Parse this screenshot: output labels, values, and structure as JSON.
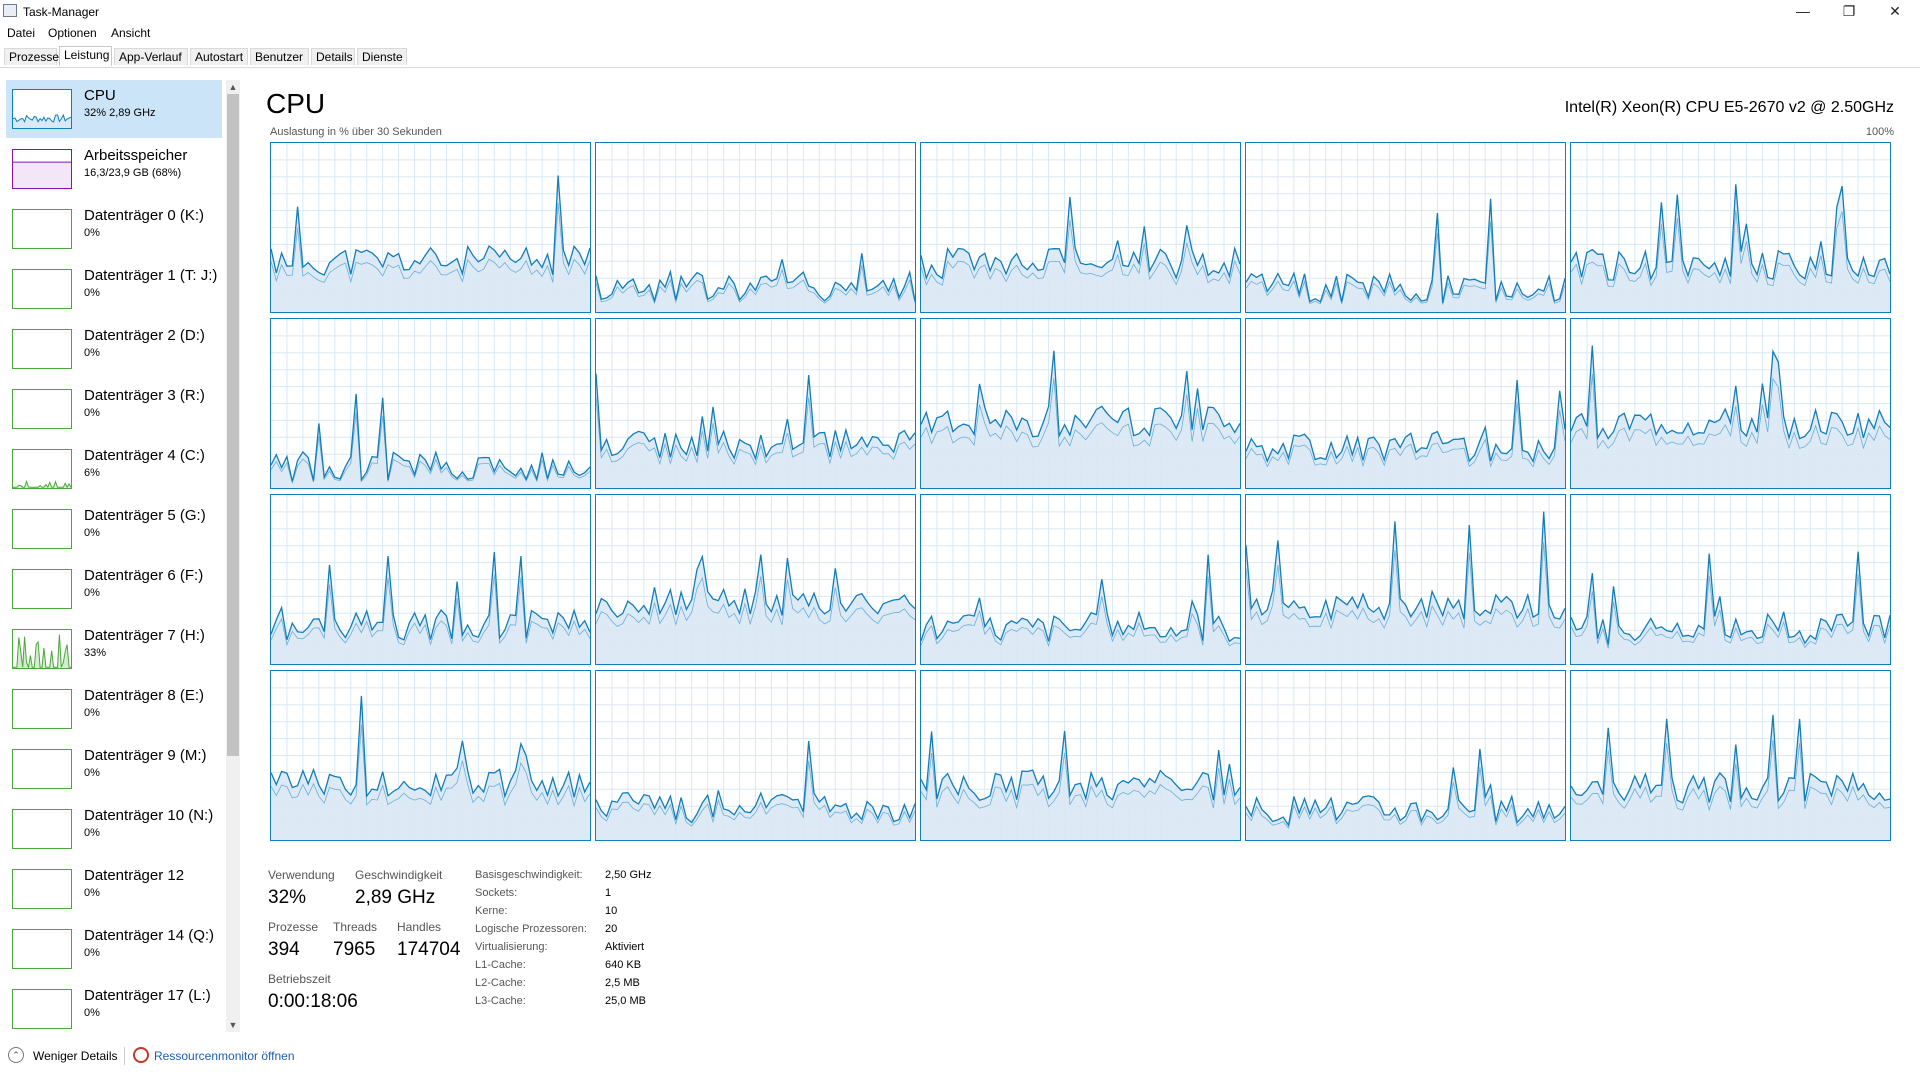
{
  "window": {
    "title": "Task-Manager"
  },
  "menu": [
    "Datei",
    "Optionen",
    "Ansicht"
  ],
  "tabs": [
    "Prozesse",
    "Leistung",
    "App-Verlauf",
    "Autostart",
    "Benutzer",
    "Details",
    "Dienste"
  ],
  "active_tab": "Leistung",
  "sidebar": [
    {
      "name": "CPU",
      "value": "32% 2,89 GHz",
      "kind": "cpu"
    },
    {
      "name": "Arbeitsspeicher",
      "value": "16,3/23,9 GB (68%)",
      "kind": "memory"
    },
    {
      "name": "Datenträger 0 (K:)",
      "value": "0%",
      "kind": "disk"
    },
    {
      "name": "Datenträger 1 (T: J:)",
      "value": "0%",
      "kind": "disk"
    },
    {
      "name": "Datenträger 2 (D:)",
      "value": "0%",
      "kind": "disk"
    },
    {
      "name": "Datenträger 3 (R:)",
      "value": "0%",
      "kind": "disk"
    },
    {
      "name": "Datenträger 4 (C:)",
      "value": "6%",
      "kind": "disk"
    },
    {
      "name": "Datenträger 5 (G:)",
      "value": "0%",
      "kind": "disk"
    },
    {
      "name": "Datenträger 6 (F:)",
      "value": "0%",
      "kind": "disk"
    },
    {
      "name": "Datenträger 7 (H:)",
      "value": "33%",
      "kind": "disk"
    },
    {
      "name": "Datenträger 8 (E:)",
      "value": "0%",
      "kind": "disk"
    },
    {
      "name": "Datenträger 9 (M:)",
      "value": "0%",
      "kind": "disk"
    },
    {
      "name": "Datenträger 10 (N:)",
      "value": "0%",
      "kind": "disk"
    },
    {
      "name": "Datenträger 12",
      "value": "0%",
      "kind": "disk"
    },
    {
      "name": "Datenträger 14 (Q:)",
      "value": "0%",
      "kind": "disk"
    },
    {
      "name": "Datenträger 17 (L:)",
      "value": "0%",
      "kind": "disk"
    }
  ],
  "main": {
    "title": "CPU",
    "cpu_model": "Intel(R) Xeon(R) CPU E5-2670 v2 @ 2.50GHz",
    "graph_caption": "Auslastung in % über 30 Sekunden",
    "graph_max": "100%",
    "core_count": 20
  },
  "stats": {
    "usage_label": "Verwendung",
    "usage_value": "32%",
    "speed_label": "Geschwindigkeit",
    "speed_value": "2,89 GHz",
    "processes_label": "Prozesse",
    "processes_value": "394",
    "threads_label": "Threads",
    "threads_value": "7965",
    "handles_label": "Handles",
    "handles_value": "174704",
    "uptime_label": "Betriebszeit",
    "uptime_value": "0:00:18:06"
  },
  "info": [
    {
      "key": "Basisgeschwindigkeit:",
      "value": "2,50 GHz"
    },
    {
      "key": "Sockets:",
      "value": "1"
    },
    {
      "key": "Kerne:",
      "value": "10"
    },
    {
      "key": "Logische Prozessoren:",
      "value": "20"
    },
    {
      "key": "Virtualisierung:",
      "value": "Aktiviert"
    },
    {
      "key": "L1-Cache:",
      "value": "640 KB"
    },
    {
      "key": "L2-Cache:",
      "value": "2,5 MB"
    },
    {
      "key": "L3-Cache:",
      "value": "25,0 MB"
    }
  ],
  "footer": {
    "fewer_details": "Weniger Details",
    "resource_monitor": "Ressourcenmonitor öffnen"
  },
  "icons": {
    "minimize": "minimize-icon",
    "maximize": "restore-icon",
    "close": "close-icon",
    "app": "task-manager-icon"
  },
  "colors": {
    "cpu": "#117dbb",
    "cpu_fill": "#d9e8f5",
    "memory": "#8b12ae",
    "disk": "#4aa83b"
  }
}
